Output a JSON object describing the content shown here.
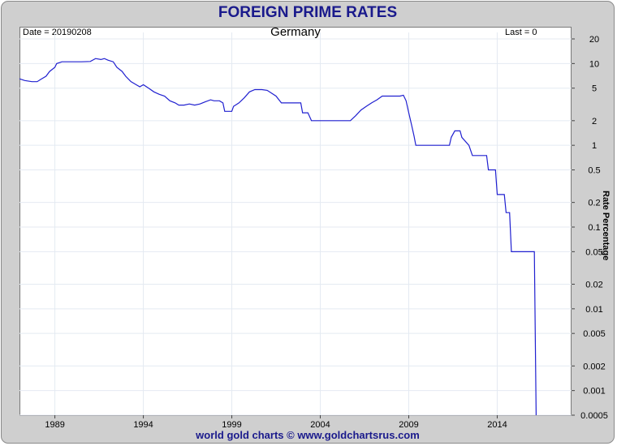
{
  "chart_data": {
    "type": "line",
    "title": "FOREIGN PRIME RATES",
    "subtitle": "Germany",
    "date_label": "Date = 20190208",
    "last_label": "Last = 0",
    "ylabel": "Rate Percentage",
    "footer": "world gold charts © www.goldchartsrus.com",
    "x_range": [
      1987.0,
      2018.2
    ],
    "y_scale": "log",
    "ylim": [
      0.0005,
      20
    ],
    "grid": true,
    "line_color": "#2020d0",
    "x_ticks": [
      {
        "value": 1989,
        "label": "1989"
      },
      {
        "value": 1994,
        "label": "1994"
      },
      {
        "value": 1999,
        "label": "1999"
      },
      {
        "value": 2004,
        "label": "2004"
      },
      {
        "value": 2009,
        "label": "2009"
      },
      {
        "value": 2014,
        "label": "2014"
      }
    ],
    "y_ticks": [
      {
        "value": 20,
        "label": "20"
      },
      {
        "value": 10,
        "label": "10"
      },
      {
        "value": 5,
        "label": "5"
      },
      {
        "value": 2,
        "label": "2"
      },
      {
        "value": 1,
        "label": "1"
      },
      {
        "value": 0.5,
        "label": "0.5"
      },
      {
        "value": 0.2,
        "label": "0.2"
      },
      {
        "value": 0.1,
        "label": "0.1"
      },
      {
        "value": 0.05,
        "label": "0.05"
      },
      {
        "value": 0.02,
        "label": "0.02"
      },
      {
        "value": 0.01,
        "label": "0.01"
      },
      {
        "value": 0.005,
        "label": "0.005"
      },
      {
        "value": 0.002,
        "label": "0.002"
      },
      {
        "value": 0.001,
        "label": "0.001"
      },
      {
        "value": 0.0005,
        "label": "0.0005"
      }
    ],
    "series": [
      {
        "points": [
          [
            1987.0,
            6.5
          ],
          [
            1987.3,
            6.2
          ],
          [
            1987.7,
            6.0
          ],
          [
            1988.0,
            6.0
          ],
          [
            1988.2,
            6.4
          ],
          [
            1988.5,
            7.0
          ],
          [
            1988.7,
            8.0
          ],
          [
            1989.0,
            9.0
          ],
          [
            1989.1,
            10.0
          ],
          [
            1989.4,
            10.5
          ],
          [
            1989.8,
            10.5
          ],
          [
            1990.0,
            10.5
          ],
          [
            1990.5,
            10.5
          ],
          [
            1991.0,
            10.6
          ],
          [
            1991.3,
            11.5
          ],
          [
            1991.6,
            11.2
          ],
          [
            1991.8,
            11.5
          ],
          [
            1992.0,
            11.0
          ],
          [
            1992.3,
            10.5
          ],
          [
            1992.5,
            9.0
          ],
          [
            1992.8,
            8.0
          ],
          [
            1993.0,
            7.0
          ],
          [
            1993.3,
            6.0
          ],
          [
            1993.6,
            5.5
          ],
          [
            1993.8,
            5.2
          ],
          [
            1994.0,
            5.5
          ],
          [
            1994.3,
            5.0
          ],
          [
            1994.6,
            4.5
          ],
          [
            1994.9,
            4.2
          ],
          [
            1995.2,
            4.0
          ],
          [
            1995.5,
            3.5
          ],
          [
            1995.8,
            3.3
          ],
          [
            1996.0,
            3.1
          ],
          [
            1996.3,
            3.1
          ],
          [
            1996.6,
            3.2
          ],
          [
            1996.9,
            3.1
          ],
          [
            1997.2,
            3.2
          ],
          [
            1997.5,
            3.4
          ],
          [
            1997.8,
            3.6
          ],
          [
            1998.0,
            3.5
          ],
          [
            1998.3,
            3.5
          ],
          [
            1998.5,
            3.3
          ],
          [
            1998.6,
            2.6
          ],
          [
            1999.0,
            2.6
          ],
          [
            1999.1,
            3.0
          ],
          [
            1999.4,
            3.3
          ],
          [
            1999.7,
            3.8
          ],
          [
            2000.0,
            4.5
          ],
          [
            2000.3,
            4.8
          ],
          [
            2000.7,
            4.8
          ],
          [
            2001.0,
            4.7
          ],
          [
            2001.2,
            4.4
          ],
          [
            2001.5,
            4.0
          ],
          [
            2001.8,
            3.3
          ],
          [
            2002.0,
            3.3
          ],
          [
            2002.5,
            3.3
          ],
          [
            2002.9,
            3.3
          ],
          [
            2003.0,
            2.5
          ],
          [
            2003.3,
            2.5
          ],
          [
            2003.5,
            2.0
          ],
          [
            2004.0,
            2.0
          ],
          [
            2005.0,
            2.0
          ],
          [
            2005.7,
            2.0
          ],
          [
            2006.0,
            2.3
          ],
          [
            2006.3,
            2.7
          ],
          [
            2006.6,
            3.0
          ],
          [
            2006.9,
            3.3
          ],
          [
            2007.2,
            3.6
          ],
          [
            2007.5,
            4.0
          ],
          [
            2007.9,
            4.0
          ],
          [
            2008.5,
            4.0
          ],
          [
            2008.7,
            4.1
          ],
          [
            2008.85,
            3.5
          ],
          [
            2009.0,
            2.5
          ],
          [
            2009.15,
            1.8
          ],
          [
            2009.3,
            1.3
          ],
          [
            2009.4,
            1.0
          ],
          [
            2010.0,
            1.0
          ],
          [
            2011.0,
            1.0
          ],
          [
            2011.3,
            1.0
          ],
          [
            2011.4,
            1.25
          ],
          [
            2011.6,
            1.5
          ],
          [
            2011.9,
            1.5
          ],
          [
            2012.0,
            1.25
          ],
          [
            2012.4,
            1.0
          ],
          [
            2012.6,
            0.75
          ],
          [
            2013.4,
            0.75
          ],
          [
            2013.5,
            0.5
          ],
          [
            2013.9,
            0.5
          ],
          [
            2014.0,
            0.25
          ],
          [
            2014.4,
            0.25
          ],
          [
            2014.5,
            0.15
          ],
          [
            2014.7,
            0.15
          ],
          [
            2014.8,
            0.05
          ],
          [
            2015.0,
            0.05
          ],
          [
            2016.1,
            0.05
          ],
          [
            2016.2,
            0.0005
          ]
        ]
      }
    ]
  }
}
